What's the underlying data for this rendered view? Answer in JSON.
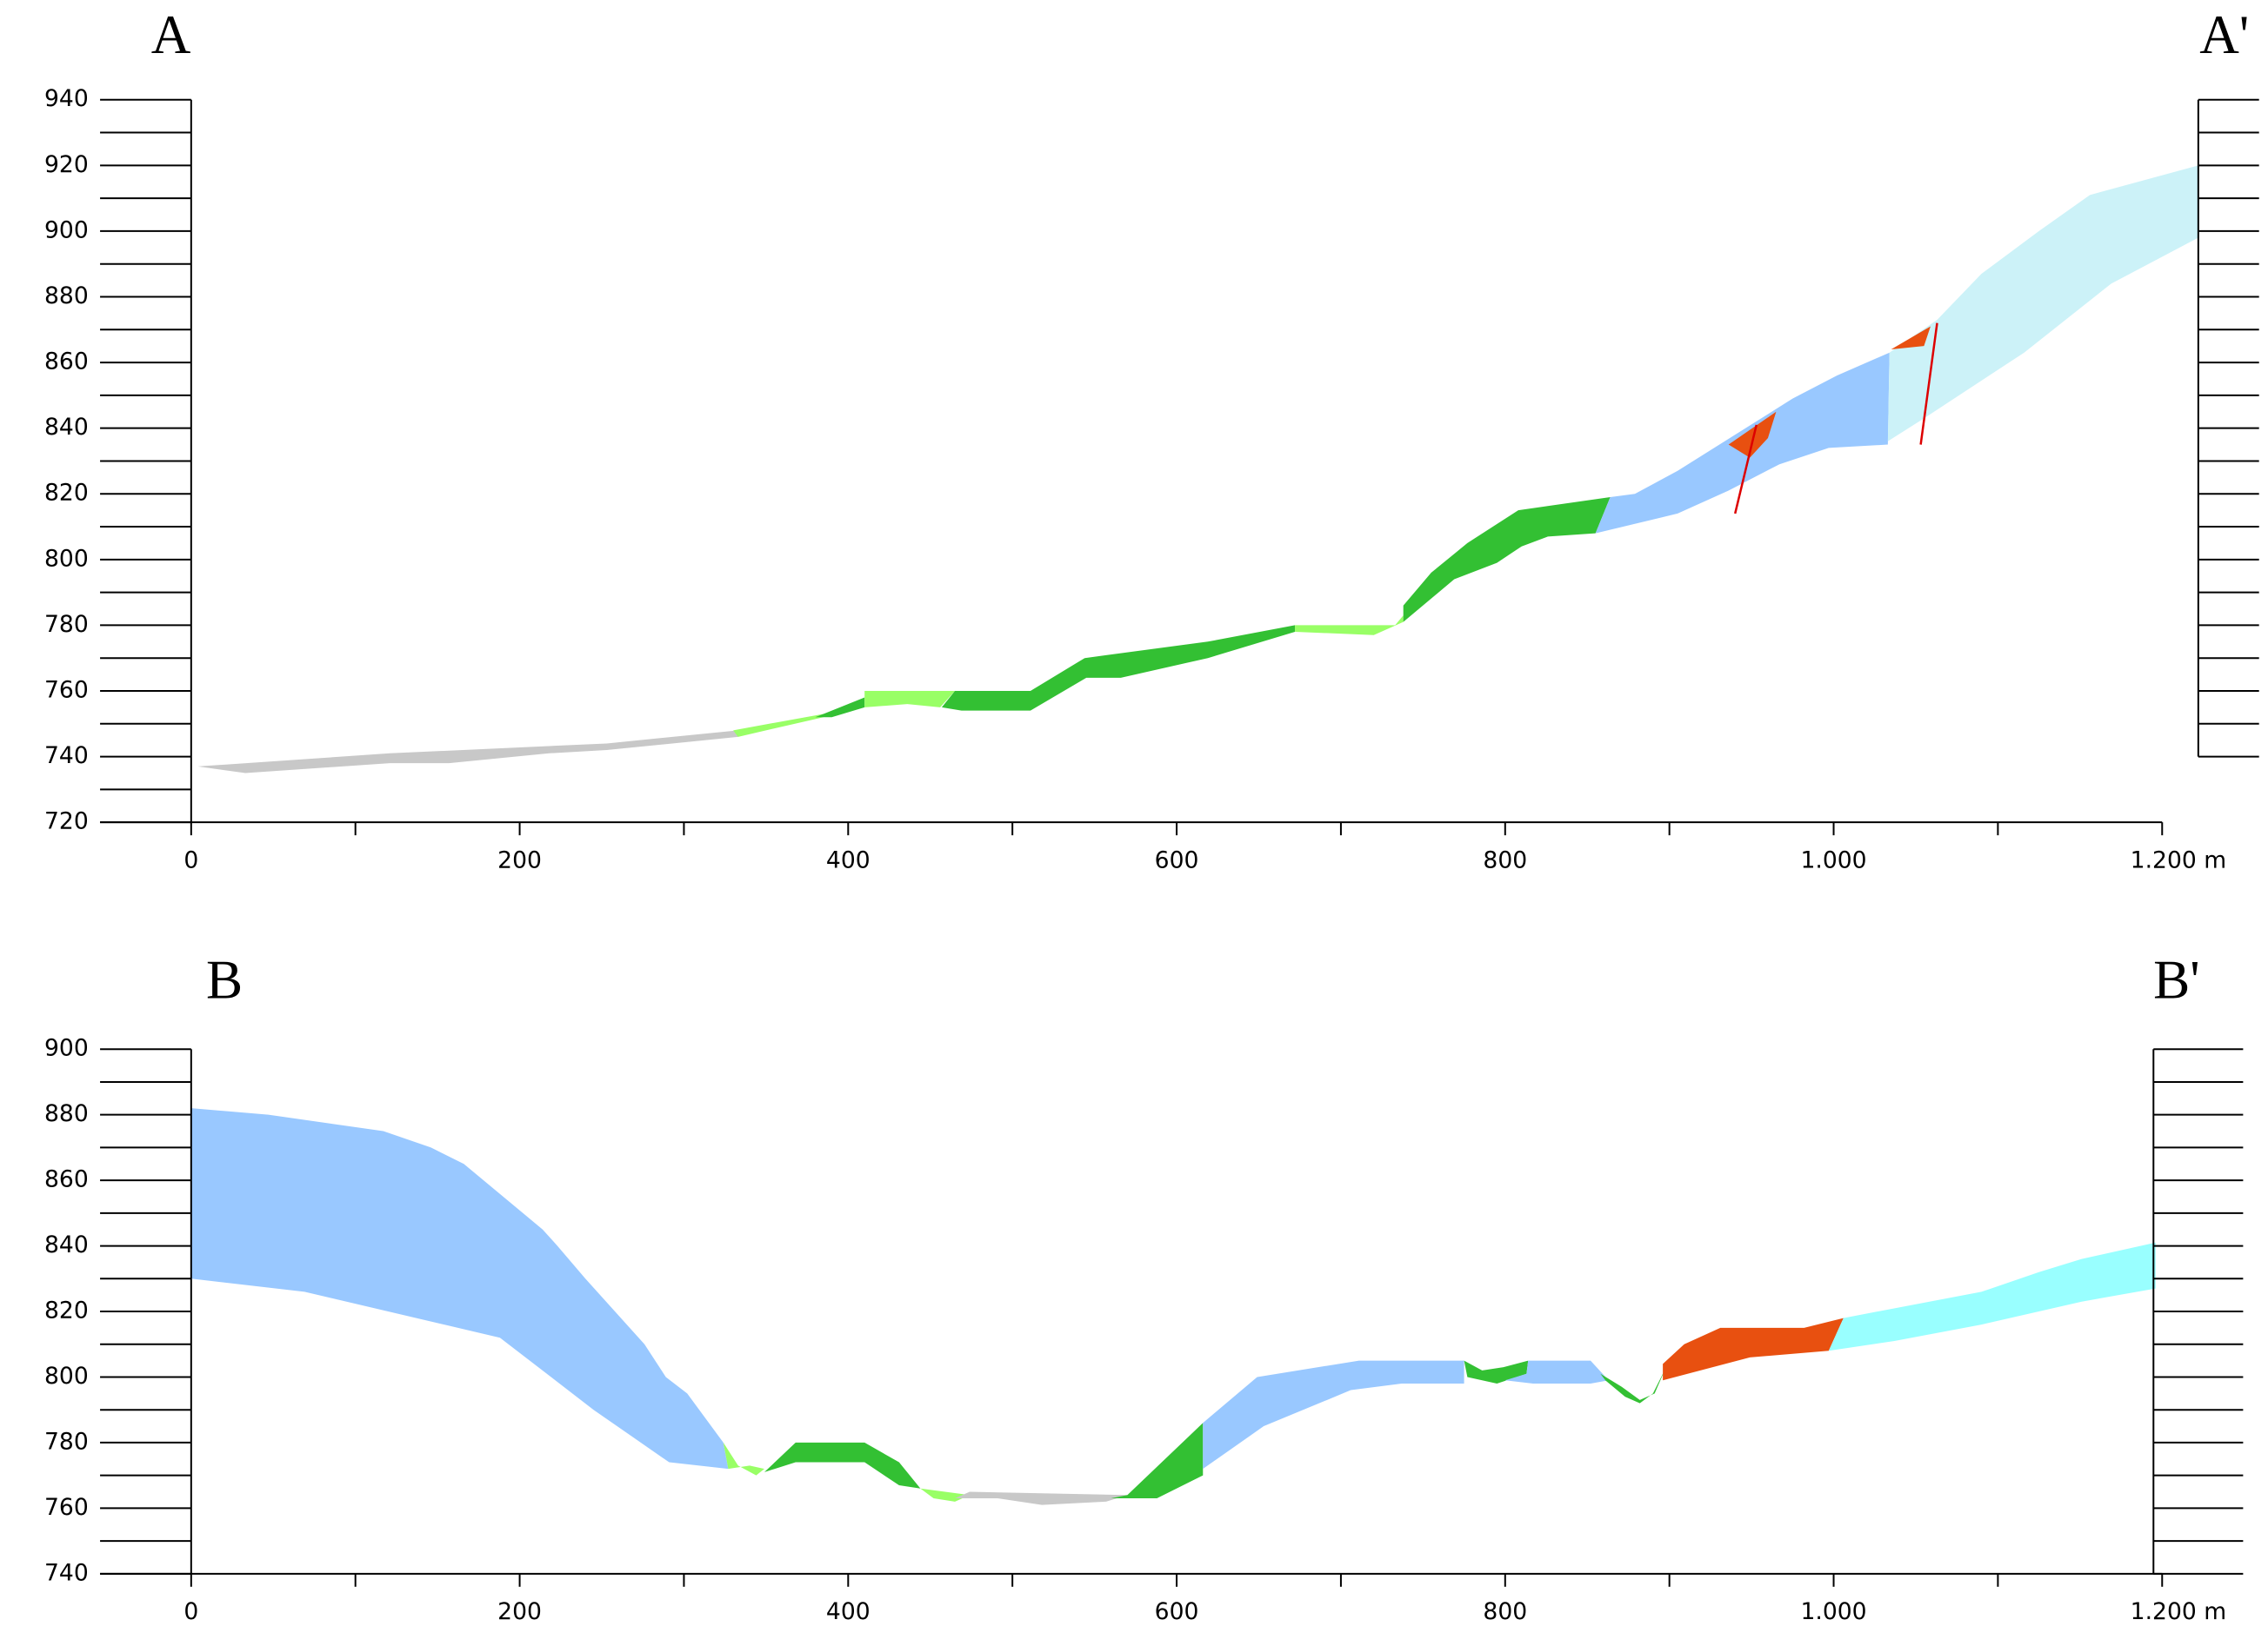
{
  "chart_data": [
    {
      "type": "section",
      "labels": {
        "left": "A",
        "right": "A'"
      },
      "xlim": [
        0,
        1200
      ],
      "ylim": [
        720,
        940
      ],
      "xticks": [
        0,
        200,
        400,
        600,
        800,
        {
          "value": 1000,
          "label": "1.000"
        },
        {
          "value": 1200,
          "label": "1.200 m"
        }
      ],
      "xticks_minor": [
        100,
        300,
        500,
        700,
        900,
        1100
      ],
      "yticks": [
        720,
        740,
        760,
        780,
        800,
        820,
        840,
        860,
        880,
        900,
        920,
        940
      ],
      "yticks_minor": [
        730,
        750,
        770,
        790,
        810,
        830,
        850,
        870,
        890,
        910,
        930
      ],
      "right_scale_ylim": [
        740,
        940
      ],
      "units": [
        {
          "color": "#c8c8c8",
          "points": [
            [
              4,
              737
            ],
            [
              121,
              741
            ],
            [
              253,
              744
            ],
            [
              333,
              748
            ],
            [
              333,
              746
            ],
            [
              253,
              742
            ],
            [
              218,
              741
            ],
            [
              157,
              738
            ],
            [
              121,
              738
            ],
            [
              33,
              735
            ]
          ]
        },
        {
          "color": "#99ff66",
          "points": [
            [
              330,
              748
            ],
            [
              385,
              753
            ],
            [
              385,
              752
            ],
            [
              350,
              748
            ],
            [
              333,
              746
            ]
          ]
        },
        {
          "color": "#33c033",
          "points": [
            [
              380,
              752
            ],
            [
              410,
              758
            ],
            [
              410,
              755
            ],
            [
              390,
              752
            ]
          ]
        },
        {
          "color": "#99ff66",
          "points": [
            [
              410,
              760
            ],
            [
              465,
              760
            ],
            [
              456,
              755
            ],
            [
              436,
              756
            ],
            [
              410,
              755
            ]
          ]
        },
        {
          "color": "#33c033",
          "points": [
            [
              465,
              760
            ],
            [
              511,
              760
            ],
            [
              544,
              770
            ],
            [
              619,
              775
            ],
            [
              672,
              780
            ],
            [
              672,
              778
            ],
            [
              619,
              770
            ],
            [
              566,
              764
            ],
            [
              545,
              764
            ],
            [
              511,
              754
            ],
            [
              469,
              754
            ],
            [
              457,
              755
            ]
          ]
        },
        {
          "color": "#99ff66",
          "points": [
            [
              672,
              780
            ],
            [
              733,
              780
            ],
            [
              738,
              783
            ],
            [
              738,
              781
            ],
            [
              720,
              777
            ],
            [
              672,
              778
            ]
          ]
        },
        {
          "color": "#33c033",
          "points": [
            [
              738,
              786
            ],
            [
              755,
              796
            ],
            [
              777,
              805
            ],
            [
              808,
              815
            ],
            [
              864,
              819
            ],
            [
              855,
              808
            ],
            [
              826,
              807
            ],
            [
              810,
              804
            ],
            [
              795,
              799
            ],
            [
              769,
              794
            ],
            [
              738,
              781
            ]
          ]
        },
        {
          "color": "#99c8ff",
          "points": [
            [
              864,
              819
            ],
            [
              879,
              820
            ],
            [
              905,
              827
            ],
            [
              975,
              849
            ],
            [
              1002,
              856
            ],
            [
              1034,
              863
            ],
            [
              1033,
              835
            ],
            [
              997,
              834
            ],
            [
              967,
              829
            ],
            [
              936,
              821
            ],
            [
              905,
              814
            ],
            [
              855,
              808
            ]
          ]
        },
        {
          "color": "#ccf2f8",
          "points": [
            [
              1034,
              863
            ],
            [
              1063,
              873
            ],
            [
              1090,
              887
            ],
            [
              1125,
              900
            ],
            [
              1156,
              911
            ],
            [
              1222,
              920
            ],
            [
              1222,
              898
            ],
            [
              1169,
              884
            ],
            [
              1116,
              863
            ],
            [
              1055,
              843
            ],
            [
              1033,
              836
            ]
          ]
        },
        {
          "color": "#e85010",
          "points": [
            [
              936,
              835
            ],
            [
              965,
              845
            ],
            [
              960,
              837
            ],
            [
              949,
              831
            ]
          ]
        },
        {
          "color": "#e85010",
          "points": [
            [
              1035,
              864
            ],
            [
              1059,
              871
            ],
            [
              1055,
              865
            ]
          ]
        }
      ],
      "faults": [
        {
          "color": "#dd0000",
          "points": [
            [
              940,
              814
            ],
            [
              953,
              841
            ]
          ]
        },
        {
          "color": "#dd0000",
          "points": [
            [
              1053,
              835
            ],
            [
              1063,
              872
            ]
          ]
        }
      ]
    },
    {
      "type": "section",
      "labels": {
        "left": "B",
        "right": "B'"
      },
      "xlim": [
        0,
        1200
      ],
      "ylim": [
        740,
        900
      ],
      "xticks": [
        0,
        200,
        400,
        600,
        800,
        {
          "value": 1000,
          "label": "1.000"
        },
        {
          "value": 1200,
          "label": "1.200 m"
        }
      ],
      "xticks_minor": [
        100,
        300,
        500,
        700,
        900,
        1100
      ],
      "yticks": [
        740,
        760,
        780,
        800,
        820,
        840,
        860,
        880,
        900
      ],
      "yticks_minor": [
        750,
        770,
        790,
        810,
        830,
        850,
        870,
        890
      ],
      "right_scale_ylim": [
        740,
        900
      ],
      "units": [
        {
          "color": "#99c8ff",
          "points": [
            [
              0,
              882
            ],
            [
              47,
              880
            ],
            [
              117,
              875
            ],
            [
              146,
              870
            ],
            [
              166,
              865
            ],
            [
              214,
              845
            ],
            [
              223,
              840
            ],
            [
              240,
              830
            ],
            [
              258,
              820
            ],
            [
              276,
              810
            ],
            [
              289,
              800
            ],
            [
              302,
              795
            ],
            [
              324,
              780
            ],
            [
              327,
              772
            ],
            [
              291,
              774
            ],
            [
              245,
              790
            ],
            [
              188,
              812
            ],
            [
              69,
              826
            ],
            [
              0,
              830
            ]
          ]
        },
        {
          "color": "#99ff66",
          "points": [
            [
              324,
              780
            ],
            [
              333,
              773
            ],
            [
              344,
              770
            ],
            [
              349,
              772
            ],
            [
              340,
              773
            ],
            [
              327,
              772
            ]
          ]
        },
        {
          "color": "#33c033",
          "points": [
            [
              349,
              771
            ],
            [
              368,
              780
            ],
            [
              410,
              780
            ],
            [
              431,
              774
            ],
            [
              444,
              766
            ],
            [
              431,
              767
            ],
            [
              410,
              774
            ],
            [
              368,
              774
            ]
          ]
        },
        {
          "color": "#99ff66",
          "points": [
            [
              444,
              766
            ],
            [
              474,
              764
            ],
            [
              465,
              762
            ],
            [
              452,
              763
            ]
          ]
        },
        {
          "color": "#c8c8c8",
          "points": [
            [
              474,
              765
            ],
            [
              570,
              764
            ],
            [
              557,
              762
            ],
            [
              518,
              761
            ],
            [
              491,
              763
            ],
            [
              465,
              763
            ]
          ]
        },
        {
          "color": "#33c033",
          "points": [
            [
              570,
              764
            ],
            [
              593,
              775
            ],
            [
              616,
              786
            ],
            [
              616,
              770
            ],
            [
              588,
              763
            ],
            [
              560,
              763
            ]
          ]
        },
        {
          "color": "#99c8ff",
          "points": [
            [
              616,
              786
            ],
            [
              649,
              800
            ],
            [
              711,
              805
            ],
            [
              775,
              805
            ],
            [
              775,
              798
            ],
            [
              737,
              798
            ],
            [
              706,
              796
            ],
            [
              653,
              785
            ],
            [
              616,
              772
            ]
          ]
        },
        {
          "color": "#33c033",
          "points": [
            [
              775,
              805
            ],
            [
              786,
              802
            ],
            [
              799,
              803
            ],
            [
              814,
              805
            ],
            [
              813,
              801
            ],
            [
              795,
              798
            ],
            [
              777,
              800
            ]
          ]
        },
        {
          "color": "#99c8ff",
          "points": [
            [
              814,
              805
            ],
            [
              852,
              805
            ],
            [
              863,
              799
            ],
            [
              852,
              798
            ],
            [
              817,
              798
            ],
            [
              800,
              799
            ],
            [
              813,
              801
            ]
          ]
        },
        {
          "color": "#33c033",
          "points": [
            [
              858,
              801
            ],
            [
              871,
              797
            ],
            [
              882,
              793
            ],
            [
              891,
              795
            ],
            [
              898,
              803
            ],
            [
              895,
              800
            ],
            [
              890,
              795
            ],
            [
              882,
              792
            ],
            [
              873,
              794
            ],
            [
              861,
              799
            ]
          ]
        },
        {
          "color": "#e85010",
          "points": [
            [
              896,
              804
            ],
            [
              909,
              810
            ],
            [
              931,
              815
            ],
            [
              982,
              815
            ],
            [
              1006,
              818
            ],
            [
              997,
              808
            ],
            [
              949,
              806
            ],
            [
              896,
              799
            ]
          ]
        },
        {
          "color": "#99ffff",
          "points": [
            [
              1006,
              818
            ],
            [
              1090,
              826
            ],
            [
              1125,
              832
            ],
            [
              1151,
              836
            ],
            [
              1196,
              841
            ],
            [
              1196,
              827
            ],
            [
              1151,
              823
            ],
            [
              1090,
              816
            ],
            [
              1037,
              811
            ],
            [
              997,
              808
            ]
          ]
        }
      ],
      "faults": []
    }
  ]
}
